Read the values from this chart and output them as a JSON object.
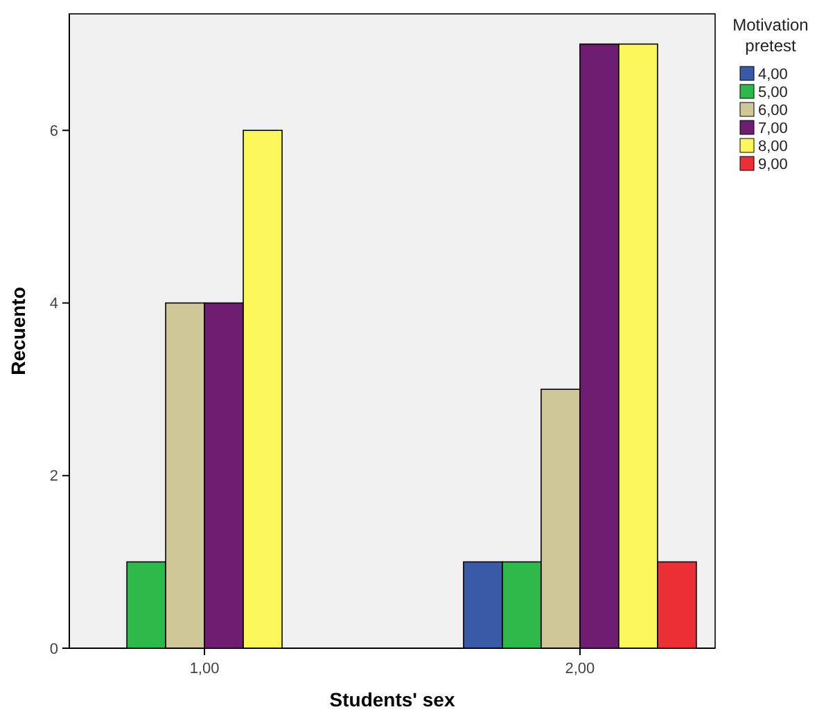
{
  "chart_data": {
    "type": "bar",
    "xlabel": "Students' sex",
    "ylabel": "Recuento",
    "legend_title": "Motivation pretest",
    "categories": [
      "1,00",
      "2,00"
    ],
    "series": [
      {
        "name": "4,00",
        "color": "#3a5aa8",
        "values": [
          null,
          1
        ]
      },
      {
        "name": "5,00",
        "color": "#2db84a",
        "values": [
          1,
          1
        ]
      },
      {
        "name": "6,00",
        "color": "#cfc797",
        "values": [
          4,
          3
        ]
      },
      {
        "name": "7,00",
        "color": "#6e1d70",
        "values": [
          4,
          7
        ]
      },
      {
        "name": "8,00",
        "color": "#fbf75a",
        "values": [
          6,
          7
        ]
      },
      {
        "name": "9,00",
        "color": "#ec2f35",
        "values": [
          null,
          1
        ]
      }
    ],
    "ylim": [
      0,
      7.35
    ],
    "yticks": [
      0,
      2,
      4,
      6
    ],
    "grid": false,
    "legend": "top right"
  }
}
